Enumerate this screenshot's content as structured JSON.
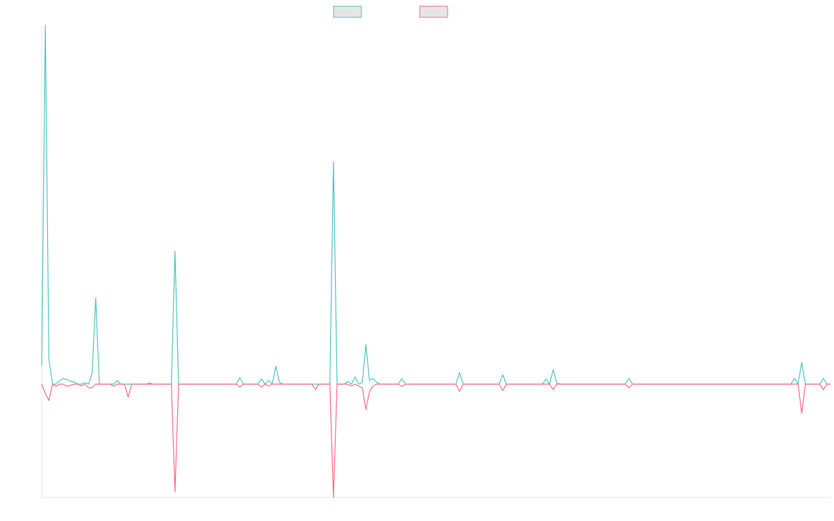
{
  "colors": {
    "teal": "#4bc0c0",
    "pink": "#ff6384",
    "swatch_fill": "#e6e6e6",
    "axis": "#e6e6e6"
  },
  "chart_data": {
    "type": "line",
    "title": "",
    "xlabel": "",
    "ylabel": "",
    "grid": false,
    "legend": "top-center",
    "ylim": [
      -31,
      100
    ],
    "x_count": 220,
    "series": [
      {
        "color": "#4bc0c0",
        "points": [
          [
            0,
            5
          ],
          [
            1,
            100
          ],
          [
            2,
            7
          ],
          [
            3,
            0
          ],
          [
            4,
            0
          ],
          [
            5,
            1
          ],
          [
            6,
            1.5
          ],
          [
            7,
            1.3
          ],
          [
            8,
            0.8
          ],
          [
            9,
            0.6
          ],
          [
            10,
            0
          ],
          [
            11,
            0
          ],
          [
            12,
            0.4
          ],
          [
            13,
            0
          ],
          [
            14,
            3
          ],
          [
            15,
            24
          ],
          [
            16,
            0
          ],
          [
            20,
            0
          ],
          [
            21,
            1
          ],
          [
            22,
            0
          ],
          [
            29,
            0
          ],
          [
            30,
            0.3
          ],
          [
            31,
            0
          ],
          [
            36,
            0
          ],
          [
            37,
            37
          ],
          [
            38,
            0
          ],
          [
            54,
            0
          ],
          [
            55,
            1.8
          ],
          [
            56,
            0
          ],
          [
            60,
            0
          ],
          [
            61,
            1.5
          ],
          [
            62,
            0
          ],
          [
            63,
            1
          ],
          [
            64,
            0
          ],
          [
            65,
            5
          ],
          [
            66,
            0.5
          ],
          [
            67,
            0
          ],
          [
            80,
            0
          ],
          [
            81,
            62
          ],
          [
            82,
            0
          ],
          [
            84,
            0
          ],
          [
            85,
            0.8
          ],
          [
            86,
            0
          ],
          [
            87,
            2
          ],
          [
            88,
            0
          ],
          [
            89,
            0.5
          ],
          [
            90,
            11
          ],
          [
            91,
            1
          ],
          [
            92,
            1.6
          ],
          [
            93,
            0.5
          ],
          [
            94,
            0
          ],
          [
            99,
            0
          ],
          [
            100,
            1.5
          ],
          [
            101,
            0
          ],
          [
            115,
            0
          ],
          [
            116,
            3.2
          ],
          [
            117,
            0
          ],
          [
            127,
            0
          ],
          [
            128,
            2.6
          ],
          [
            129,
            0
          ],
          [
            139,
            0
          ],
          [
            140,
            1.4
          ],
          [
            141,
            0
          ],
          [
            142,
            4
          ],
          [
            143,
            0.3
          ],
          [
            144,
            0
          ],
          [
            162,
            0
          ],
          [
            163,
            1.6
          ],
          [
            164,
            0
          ],
          [
            208,
            0
          ],
          [
            209,
            1.6
          ],
          [
            210,
            0
          ],
          [
            211,
            6
          ],
          [
            212,
            0
          ],
          [
            216,
            0
          ],
          [
            217,
            1.6
          ],
          [
            218,
            0
          ],
          [
            219,
            0
          ]
        ]
      },
      {
        "color": "#ff6384",
        "points": [
          [
            0,
            0
          ],
          [
            1,
            -2.5
          ],
          [
            2,
            -4.5
          ],
          [
            3,
            0
          ],
          [
            4,
            -0.6
          ],
          [
            5,
            0
          ],
          [
            6,
            0
          ],
          [
            7,
            -0.6
          ],
          [
            8,
            -0.3
          ],
          [
            9,
            0
          ],
          [
            10,
            0
          ],
          [
            11,
            -0.5
          ],
          [
            12,
            0
          ],
          [
            13,
            -1
          ],
          [
            14,
            -1
          ],
          [
            15,
            0
          ],
          [
            19,
            0
          ],
          [
            20,
            -0.6
          ],
          [
            21,
            0
          ],
          [
            23,
            0
          ],
          [
            24,
            -3.5
          ],
          [
            25,
            0
          ],
          [
            36,
            0
          ],
          [
            37,
            -29.5
          ],
          [
            38,
            0
          ],
          [
            54,
            0
          ],
          [
            55,
            -0.8
          ],
          [
            56,
            0
          ],
          [
            60,
            0
          ],
          [
            61,
            -0.8
          ],
          [
            62,
            0
          ],
          [
            63,
            -0.5
          ],
          [
            64,
            0
          ],
          [
            75,
            0
          ],
          [
            76,
            -1.5
          ],
          [
            77,
            0
          ],
          [
            80,
            0
          ],
          [
            81,
            -31
          ],
          [
            82,
            0
          ],
          [
            84,
            0
          ],
          [
            85,
            0
          ],
          [
            86,
            -0.5
          ],
          [
            87,
            0
          ],
          [
            88,
            -0.5
          ],
          [
            89,
            -1
          ],
          [
            90,
            -7
          ],
          [
            91,
            -2
          ],
          [
            92,
            -0.5
          ],
          [
            93,
            0
          ],
          [
            99,
            0
          ],
          [
            100,
            -0.6
          ],
          [
            101,
            0
          ],
          [
            115,
            0
          ],
          [
            116,
            -2
          ],
          [
            117,
            0
          ],
          [
            127,
            0
          ],
          [
            128,
            -1.8
          ],
          [
            129,
            0
          ],
          [
            141,
            0
          ],
          [
            142,
            -1.5
          ],
          [
            143,
            0
          ],
          [
            162,
            0
          ],
          [
            163,
            -1
          ],
          [
            164,
            0
          ],
          [
            208,
            0
          ],
          [
            209,
            0
          ],
          [
            210,
            0
          ],
          [
            211,
            -8
          ],
          [
            212,
            0
          ],
          [
            216,
            0
          ],
          [
            217,
            -1.5
          ],
          [
            218,
            0
          ],
          [
            219,
            0
          ]
        ]
      }
    ]
  }
}
